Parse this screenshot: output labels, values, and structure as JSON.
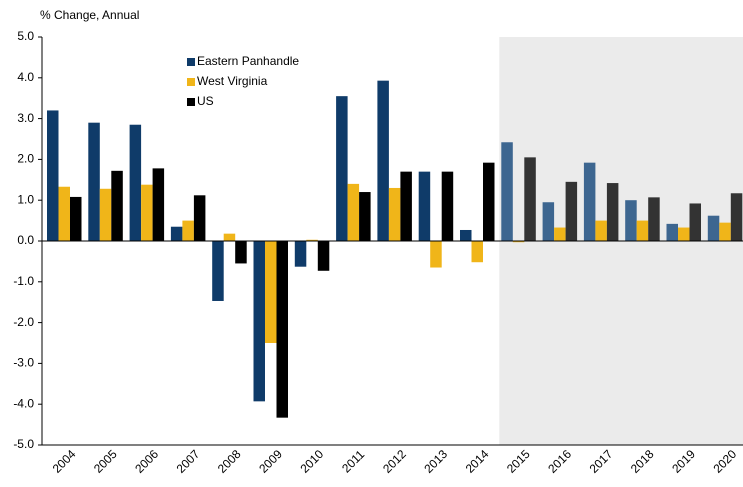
{
  "chart_data": {
    "type": "bar",
    "y_axis_label": "% Change, Annual",
    "categories": [
      "2004",
      "2005",
      "2006",
      "2007",
      "2008",
      "2009",
      "2010",
      "2011",
      "2012",
      "2013",
      "2014",
      "2015",
      "2016",
      "2017",
      "2018",
      "2019",
      "2020"
    ],
    "series": [
      {
        "name": "Eastern Panhandle",
        "color": "#0f3b69",
        "forecast_color": "#3d6690",
        "values": [
          3.2,
          2.9,
          2.85,
          0.35,
          -1.47,
          -3.93,
          -0.63,
          3.55,
          3.93,
          1.7,
          0.27,
          2.42,
          0.95,
          1.92,
          1.0,
          0.42,
          0.62
        ]
      },
      {
        "name": "West Virginia",
        "color": "#f0b519",
        "forecast_color": "#f0b519",
        "values": [
          1.33,
          1.28,
          1.38,
          0.5,
          0.18,
          -2.5,
          0.03,
          1.4,
          1.3,
          -0.65,
          -0.52,
          -0.03,
          0.33,
          0.5,
          0.5,
          0.33,
          0.45
        ]
      },
      {
        "name": "US",
        "color": "#000000",
        "forecast_color": "#333333",
        "values": [
          1.08,
          1.72,
          1.78,
          1.12,
          -0.55,
          -4.33,
          -0.73,
          1.2,
          1.7,
          1.7,
          1.92,
          2.05,
          1.45,
          1.42,
          1.07,
          0.92,
          1.17
        ]
      }
    ],
    "forecast_from": "2015",
    "ylim": [
      -5,
      5
    ],
    "yticks": [
      {
        "value": -5,
        "label": "-5.0"
      },
      {
        "value": -4,
        "label": "-4.0"
      },
      {
        "value": -3,
        "label": "-3.0"
      },
      {
        "value": -2,
        "label": "-2.0"
      },
      {
        "value": -1,
        "label": "-1.0"
      },
      {
        "value": 0,
        "label": "0.0"
      },
      {
        "value": 1,
        "label": "1.0"
      },
      {
        "value": 2,
        "label": "2.0"
      },
      {
        "value": 3,
        "label": "3.0"
      },
      {
        "value": 4,
        "label": "4.0"
      },
      {
        "value": 5,
        "label": "5.0"
      }
    ],
    "legend": "upper-center"
  }
}
